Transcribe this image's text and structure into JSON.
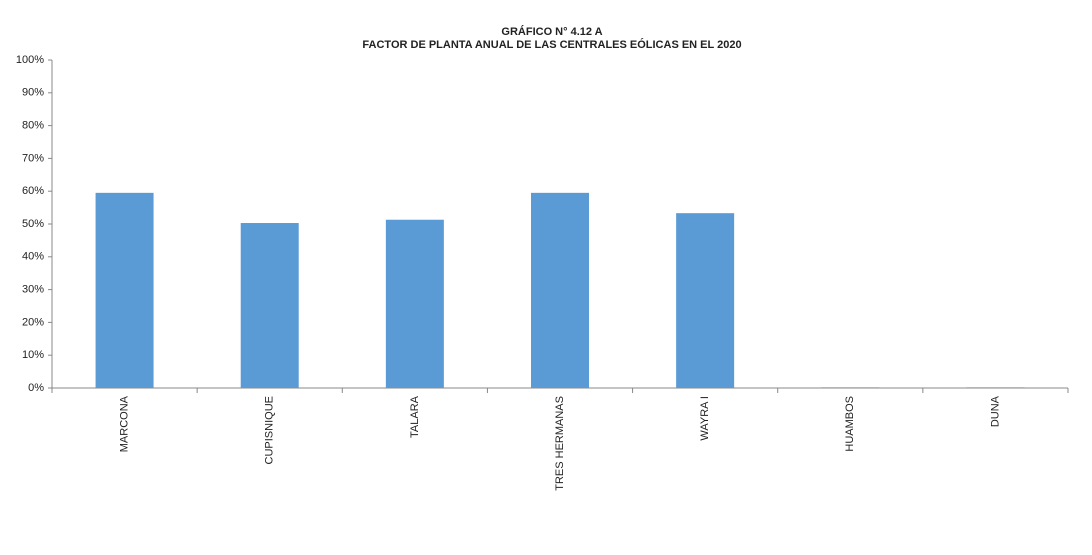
{
  "chart_data": {
    "type": "bar",
    "title": "GRÁFICO N° 4.12 A",
    "subtitle": "FACTOR DE PLANTA ANUAL DE LAS CENTRALES EÓLICAS EN EL 2020",
    "categories": [
      "MARCONA",
      "CUPISNIQUE",
      "TALARA",
      "TRES HERMANAS",
      "WAYRA I",
      "HUAMBOS",
      "DUNA"
    ],
    "values": [
      59.5,
      50.3,
      51.3,
      59.5,
      53.3,
      0.2,
      0.2
    ],
    "color": "#5b9bd5",
    "ylim": [
      0,
      100
    ],
    "yticks": [
      {
        "value": 0,
        "label": "0%"
      },
      {
        "value": 10,
        "label": "10%"
      },
      {
        "value": 20,
        "label": "20%"
      },
      {
        "value": 30,
        "label": "30%"
      },
      {
        "value": 40,
        "label": "40%"
      },
      {
        "value": 50,
        "label": "50%"
      },
      {
        "value": 60,
        "label": "60%"
      },
      {
        "value": 70,
        "label": "70%"
      },
      {
        "value": 80,
        "label": "80%"
      },
      {
        "value": 90,
        "label": "90%"
      },
      {
        "value": 100,
        "label": "100%"
      }
    ],
    "grid": false
  }
}
